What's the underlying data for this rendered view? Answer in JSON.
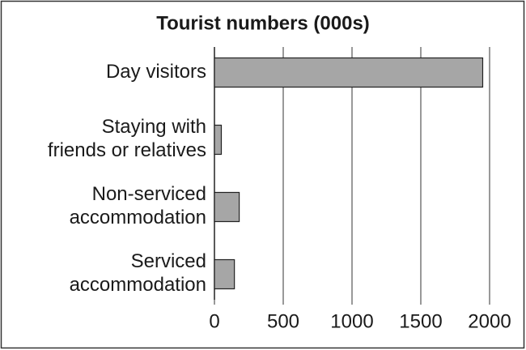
{
  "chart_data": {
    "type": "bar",
    "orientation": "horizontal",
    "title": "Tourist numbers (000s)",
    "categories": [
      "Day visitors",
      "Staying with\nfriends or relatives",
      "Non-serviced\naccommodation",
      "Serviced\naccommodation"
    ],
    "values": [
      1950,
      50,
      180,
      145
    ],
    "color": "#a6a6a6",
    "xlim": [
      0,
      2000
    ],
    "xticks": [
      0,
      500,
      1000,
      1500,
      2000
    ],
    "grid": true
  }
}
